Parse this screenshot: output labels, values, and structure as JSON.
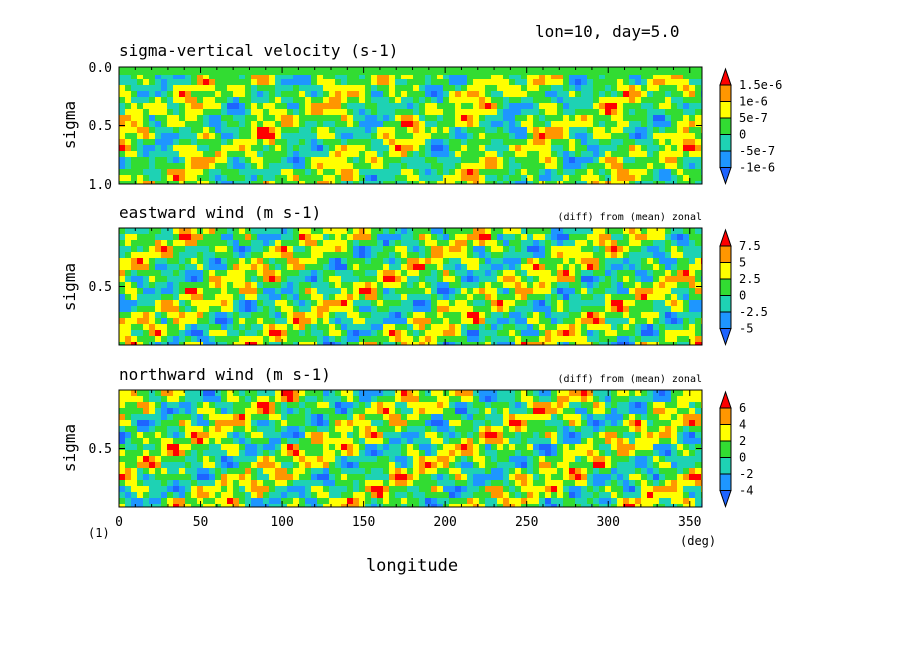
{
  "header": {
    "info": "lon=10, day=5.0"
  },
  "footer": {
    "corner_label": "(1)",
    "xlabel": "longitude",
    "xunit": "(deg)",
    "xticks": [
      "0",
      "50",
      "100",
      "150",
      "200",
      "250",
      "300",
      "350"
    ]
  },
  "colors": {
    "levels": [
      "#1e64ff",
      "#1e96ff",
      "#1ed2b4",
      "#32dc32",
      "#ffff00",
      "#ff9600",
      "#ff0000"
    ],
    "below_arrow": "#1e64ff",
    "above_arrow": "#ff0000"
  },
  "chart_data": [
    {
      "type": "heatmap",
      "title": "sigma-vertical velocity (s-1)",
      "subtitle": "",
      "ylabel": "sigma",
      "yticks": [
        "0.0",
        "0.5",
        "1.0"
      ],
      "x_range": [
        0,
        357.5
      ],
      "y_range": [
        0.0,
        1.0
      ],
      "colorbar_labels": [
        "1.5e-6",
        "1e-6",
        "5e-7",
        "0",
        "-5e-7",
        "-1e-6"
      ],
      "levels": [
        -1.5e-06,
        -1e-06,
        -5e-07,
        0,
        5e-07,
        1e-06,
        1.5e-06
      ]
    },
    {
      "type": "heatmap",
      "title": "eastward wind (m s-1)",
      "subtitle": "(diff) from (mean) zonal",
      "ylabel": "sigma",
      "yticks": [
        "0.5"
      ],
      "x_range": [
        0,
        357.5
      ],
      "y_range": [
        0.0,
        1.0
      ],
      "colorbar_labels": [
        "7.5",
        "5",
        "2.5",
        "0",
        "-2.5",
        "-5"
      ],
      "levels": [
        -7.5,
        -5,
        -2.5,
        0,
        2.5,
        5,
        7.5
      ]
    },
    {
      "type": "heatmap",
      "title": "northward wind (m s-1)",
      "subtitle": "(diff) from (mean) zonal",
      "ylabel": "sigma",
      "yticks": [
        "0.5"
      ],
      "x_range": [
        0,
        357.5
      ],
      "y_range": [
        0.0,
        1.0
      ],
      "colorbar_labels": [
        "6",
        "4",
        "2",
        "0",
        "-2",
        "-4"
      ],
      "levels": [
        -6,
        -4,
        -2,
        0,
        2,
        4,
        6
      ]
    }
  ]
}
